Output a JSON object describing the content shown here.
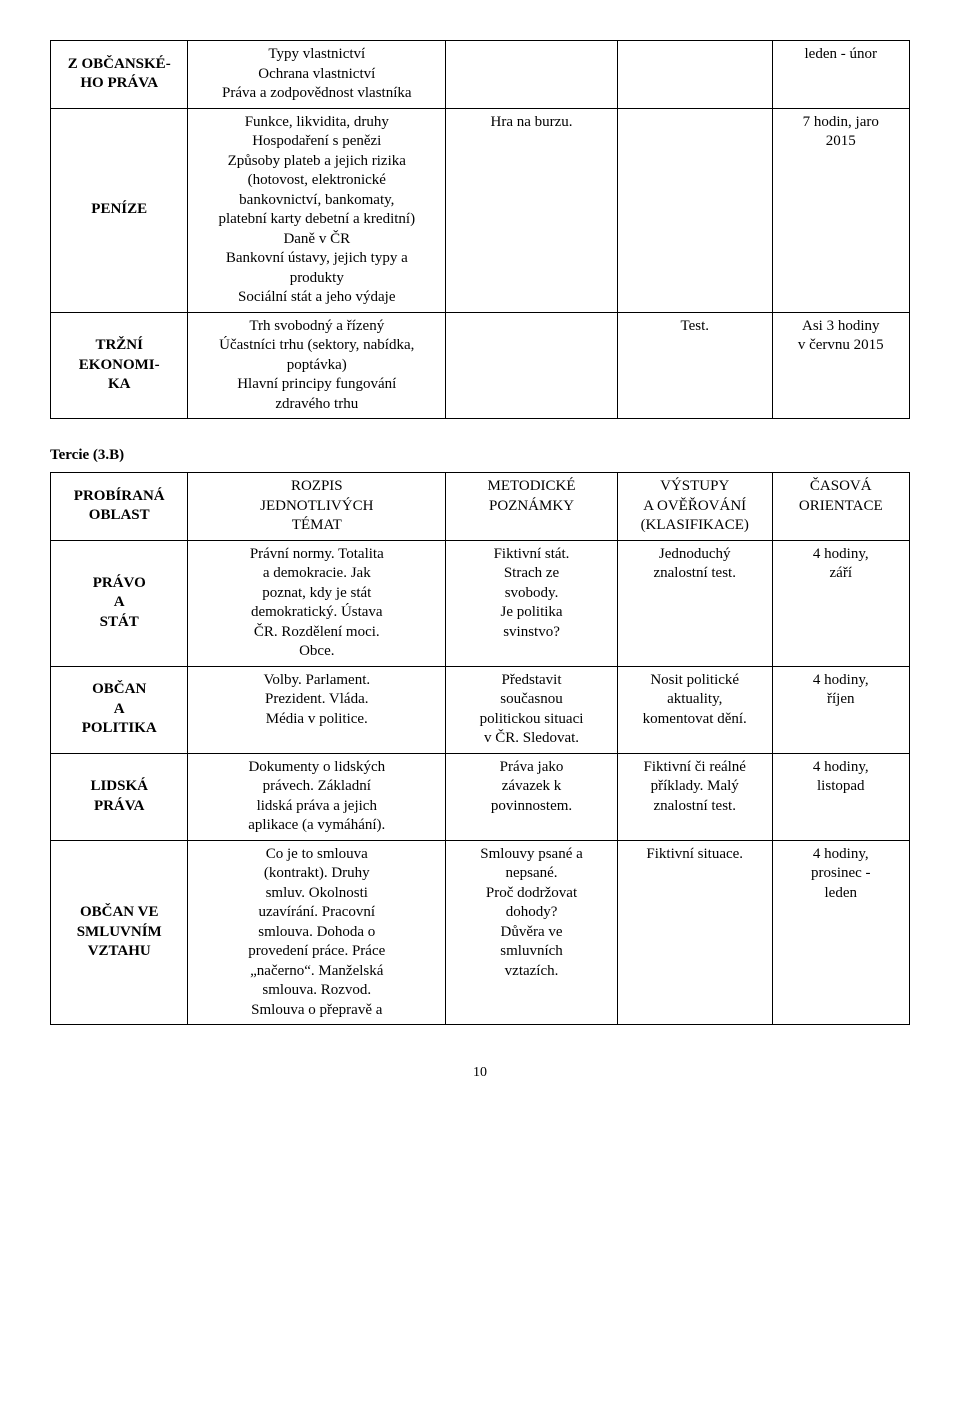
{
  "table1": {
    "rows": [
      {
        "c1": "Z OBČANSKÉ-HO PRÁVA",
        "c2": "Typy vlastnictví\nOchrana vlastnictví\nPráva a zodpovědnost vlastníka",
        "c3": "",
        "c4": "",
        "c5": "leden - únor"
      },
      {
        "c1": "PENÍZE",
        "c2": "Funkce, likvidita, druhy\nHospodaření s penězi\nZpůsoby plateb a jejich rizika\n(hotovost, elektronické\nbankovnictví, bankomaty,\nplatební karty debetní a kreditní)\nDaně v ČR\nBankovní ústavy, jejich typy a\nprodukty\nSociální stát a jeho výdaje",
        "c3": "Hra na burzu.",
        "c4": "",
        "c5": "7 hodin, jaro\n2015"
      },
      {
        "c1": "TRŽNÍ\nEKONOMI-\nKA",
        "c2": "Trh svobodný a řízený\nÚčastníci trhu (sektory, nabídka,\npoptávka)\nHlavní principy fungování\nzdravého trhu",
        "c3": "",
        "c4": "Test.",
        "c5": "Asi 3 hodiny\nv červnu 2015"
      }
    ]
  },
  "section_label": "Tercie (3.B)",
  "table2": {
    "header": {
      "c1": "PROBÍRANÁ\nOBLAST",
      "c2": "ROZPIS\nJEDNOTLIVÝCH\nTÉMAT",
      "c3": "METODICKÉ\nPOZNÁMKY",
      "c4": "VÝSTUPY\nA OVĚŘOVÁNÍ\n(KLASIFIKACE)",
      "c5": "ČASOVÁ\nORIENTACE"
    },
    "rows": [
      {
        "c1": "PRÁVO\nA\nSTÁT",
        "c2": "Právní normy. Totalita\na demokracie. Jak\npoznat, kdy je stát\ndemokratický. Ústava\nČR. Rozdělení moci.\nObce.",
        "c3": "Fiktivní stát.\nStrach ze\nsvobody.\nJe politika\nsvinstvo?",
        "c4": "Jednoduchý\nznalostní test.",
        "c5": "4 hodiny,\nzáří"
      },
      {
        "c1": "OBČAN\nA\nPOLITIKA",
        "c2": "Volby. Parlament.\nPrezident. Vláda.\nMédia v politice.",
        "c3": "Představit\nsoučasnou\npolitickou situaci\nv ČR. Sledovat.",
        "c4": "Nosit politické\naktuality,\nkomentovat dění.",
        "c5": "4 hodiny,\nříjen"
      },
      {
        "c1": "LIDSKÁ\nPRÁVA",
        "c2": "Dokumenty o lidských\nprávech. Základní\nlidská práva a jejich\naplikace (a vymáhání).",
        "c3": "Práva jako\nzávazek k\npovinnostem.",
        "c4": "Fiktivní či reálné\npříklady. Malý\nznalostní test.",
        "c5": "4 hodiny,\nlistopad"
      },
      {
        "c1": "OBČAN VE\nSMLUVNÍM\nVZTAHU",
        "c2": "Co je to smlouva\n(kontrakt). Druhy\nsmluv. Okolnosti\nuzavírání. Pracovní\nsmlouva. Dohoda o\nprovedení práce. Práce\n„načerno“. Manželská\nsmlouva. Rozvod.\nSmlouva o přepravě a",
        "c3": "Smlouvy psané a\nnepsané.\nProč dodržovat\ndohody?\nDůvěra ve\nsmluvních\nvztazích.",
        "c4": "Fiktivní situace.",
        "c5": "4 hodiny,\nprosinec -\nleden"
      }
    ]
  },
  "page_number": "10"
}
